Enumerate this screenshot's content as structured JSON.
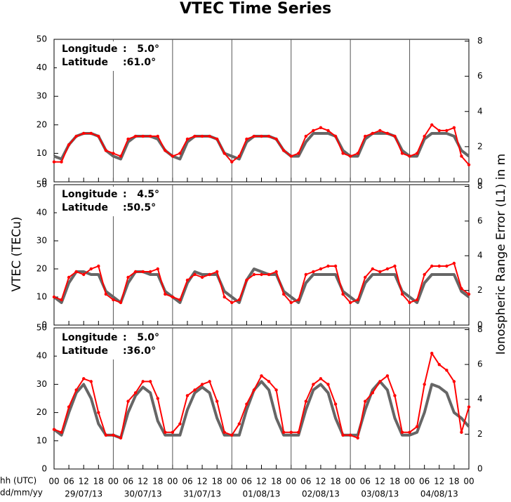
{
  "chart_data": [
    {
      "type": "line",
      "title": "VTEC Time Series",
      "annotation": {
        "label1": "Longitude",
        "value1": ":   5.0°",
        "label2": "Latitude",
        "value2": ":61.0°"
      },
      "x": [
        0,
        3,
        6,
        9,
        12,
        15,
        18,
        21,
        24,
        27,
        30,
        33,
        36,
        39,
        42,
        45,
        48,
        51,
        54,
        57,
        60,
        63,
        66,
        69,
        72,
        75,
        78,
        81,
        84,
        87,
        90,
        93,
        96,
        99,
        102,
        105,
        108,
        111,
        114,
        117,
        120,
        123,
        126,
        129,
        132,
        135,
        138,
        141,
        144,
        147,
        150,
        153,
        156,
        159,
        162,
        165,
        168
      ],
      "xlim": [
        0,
        168
      ],
      "ylim": [
        0,
        50
      ],
      "yticks": [
        0,
        10,
        20,
        30,
        40,
        50
      ],
      "y2lim": [
        0,
        8.1
      ],
      "y2ticks": [
        0,
        2,
        4,
        6,
        8
      ],
      "series": [
        {
          "color": "#666666",
          "values": [
            9,
            8,
            13,
            16,
            17,
            17,
            16,
            11,
            9,
            8,
            14,
            16,
            16,
            16,
            15,
            11,
            9,
            8,
            14,
            16,
            16,
            16,
            15,
            10,
            9,
            8,
            14,
            16,
            16,
            16,
            15,
            11,
            9,
            9,
            14,
            17,
            17,
            17,
            16,
            11,
            9,
            9,
            15,
            17,
            17,
            17,
            16,
            11,
            9,
            9,
            15,
            17,
            17,
            17,
            16,
            11,
            9
          ]
        },
        {
          "color": "#ff0000",
          "values": [
            7,
            7,
            13,
            16,
            17,
            17,
            16,
            11,
            10,
            9,
            15,
            16,
            16,
            16,
            16,
            11,
            9,
            10,
            15,
            16,
            16,
            16,
            15,
            10,
            7,
            9,
            15,
            16,
            16,
            16,
            15,
            11,
            9,
            10,
            16,
            18,
            19,
            18,
            16,
            10,
            9,
            10,
            16,
            17,
            18,
            17,
            16,
            10,
            9,
            10,
            16,
            20,
            18,
            18,
            19,
            9,
            6
          ]
        }
      ]
    },
    {
      "type": "line",
      "ylabel": "VTEC (TECu)",
      "y2label": "Ionospheric Range Error (L1) in m",
      "annotation": {
        "label1": "Longitude",
        "value1": ":   4.5°",
        "label2": "Latitude",
        "value2": ":50.5°"
      },
      "x": [
        0,
        3,
        6,
        9,
        12,
        15,
        18,
        21,
        24,
        27,
        30,
        33,
        36,
        39,
        42,
        45,
        48,
        51,
        54,
        57,
        60,
        63,
        66,
        69,
        72,
        75,
        78,
        81,
        84,
        87,
        90,
        93,
        96,
        99,
        102,
        105,
        108,
        111,
        114,
        117,
        120,
        123,
        126,
        129,
        132,
        135,
        138,
        141,
        144,
        147,
        150,
        153,
        156,
        159,
        162,
        165,
        168
      ],
      "xlim": [
        0,
        168
      ],
      "ylim": [
        0,
        50
      ],
      "yticks": [
        0,
        10,
        20,
        30,
        40,
        50
      ],
      "y2lim": [
        0,
        8.1
      ],
      "y2ticks": [
        0,
        2,
        4,
        6,
        8
      ],
      "series": [
        {
          "color": "#666666",
          "values": [
            10,
            8,
            15,
            19,
            19,
            18,
            18,
            12,
            10,
            8,
            15,
            19,
            19,
            18,
            18,
            12,
            10,
            8,
            15,
            19,
            18,
            18,
            18,
            12,
            10,
            8,
            16,
            20,
            19,
            18,
            18,
            12,
            10,
            8,
            15,
            18,
            18,
            18,
            18,
            12,
            10,
            8,
            15,
            18,
            18,
            18,
            18,
            12,
            10,
            8,
            15,
            18,
            18,
            18,
            18,
            12,
            10
          ]
        },
        {
          "color": "#ff0000",
          "values": [
            10,
            9,
            17,
            19,
            18,
            20,
            21,
            11,
            9,
            8,
            17,
            19,
            19,
            19,
            20,
            11,
            10,
            9,
            16,
            18,
            17,
            18,
            19,
            10,
            8,
            9,
            16,
            18,
            18,
            18,
            19,
            11,
            8,
            9,
            18,
            19,
            20,
            21,
            21,
            11,
            8,
            9,
            17,
            20,
            19,
            20,
            21,
            11,
            8,
            9,
            18,
            21,
            21,
            21,
            22,
            13,
            11
          ]
        }
      ]
    },
    {
      "type": "line",
      "annotation": {
        "label1": "Longitude",
        "value1": ":   5.0°",
        "label2": "Latitude",
        "value2": ":36.0°"
      },
      "x": [
        0,
        3,
        6,
        9,
        12,
        15,
        18,
        21,
        24,
        27,
        30,
        33,
        36,
        39,
        42,
        45,
        48,
        51,
        54,
        57,
        60,
        63,
        66,
        69,
        72,
        75,
        78,
        81,
        84,
        87,
        90,
        93,
        96,
        99,
        102,
        105,
        108,
        111,
        114,
        117,
        120,
        123,
        126,
        129,
        132,
        135,
        138,
        141,
        144,
        147,
        150,
        153,
        156,
        159,
        162,
        165,
        168
      ],
      "xlim": [
        0,
        168
      ],
      "ylim": [
        0,
        50
      ],
      "yticks": [
        0,
        10,
        20,
        30,
        40,
        50
      ],
      "y2lim": [
        0,
        8.1
      ],
      "y2ticks": [
        0,
        2,
        4,
        6,
        8
      ],
      "xlabel1": "hh (UTC)",
      "xlabel2": "dd/mm/yy",
      "xticks": [
        {
          "value": 0,
          "label": "00"
        },
        {
          "value": 6,
          "label": "06"
        },
        {
          "value": 12,
          "label": "12"
        },
        {
          "value": 18,
          "label": "18"
        },
        {
          "value": 24,
          "label": "00"
        },
        {
          "value": 30,
          "label": "06"
        },
        {
          "value": 36,
          "label": "12"
        },
        {
          "value": 42,
          "label": "18"
        },
        {
          "value": 48,
          "label": "00"
        },
        {
          "value": 54,
          "label": "06"
        },
        {
          "value": 60,
          "label": "12"
        },
        {
          "value": 66,
          "label": "18"
        },
        {
          "value": 72,
          "label": "00"
        },
        {
          "value": 78,
          "label": "06"
        },
        {
          "value": 84,
          "label": "12"
        },
        {
          "value": 90,
          "label": "18"
        },
        {
          "value": 96,
          "label": "00"
        },
        {
          "value": 102,
          "label": "06"
        },
        {
          "value": 108,
          "label": "12"
        },
        {
          "value": 114,
          "label": "18"
        },
        {
          "value": 120,
          "label": "00"
        },
        {
          "value": 126,
          "label": "06"
        },
        {
          "value": 132,
          "label": "12"
        },
        {
          "value": 138,
          "label": "18"
        },
        {
          "value": 144,
          "label": "00"
        },
        {
          "value": 150,
          "label": "06"
        },
        {
          "value": 156,
          "label": "12"
        },
        {
          "value": 162,
          "label": "18"
        },
        {
          "value": 168,
          "label": "00"
        }
      ],
      "day_labels": [
        "29/07/13",
        "30/07/13",
        "31/07/13",
        "01/08/13",
        "02/08/13",
        "03/08/13",
        "04/08/13"
      ],
      "series": [
        {
          "color": "#666666",
          "values": [
            14,
            12,
            20,
            27,
            30,
            25,
            16,
            12,
            12,
            11,
            20,
            26,
            29,
            27,
            17,
            12,
            12,
            12,
            21,
            27,
            29,
            27,
            18,
            12,
            12,
            12,
            21,
            28,
            31,
            28,
            18,
            12,
            12,
            12,
            21,
            28,
            30,
            27,
            18,
            12,
            12,
            12,
            21,
            28,
            31,
            28,
            18,
            12,
            12,
            13,
            20,
            30,
            29,
            27,
            20,
            18,
            15
          ]
        },
        {
          "color": "#ff0000",
          "values": [
            14,
            13,
            22,
            28,
            32,
            31,
            20,
            12,
            12,
            11,
            24,
            27,
            31,
            31,
            25,
            13,
            13,
            16,
            26,
            28,
            30,
            31,
            24,
            13,
            12,
            16,
            23,
            28,
            33,
            31,
            28,
            13,
            13,
            13,
            24,
            30,
            32,
            30,
            23,
            12,
            12,
            11,
            24,
            27,
            31,
            33,
            26,
            13,
            13,
            15,
            30,
            41,
            37,
            35,
            31,
            13,
            22
          ]
        }
      ]
    }
  ]
}
